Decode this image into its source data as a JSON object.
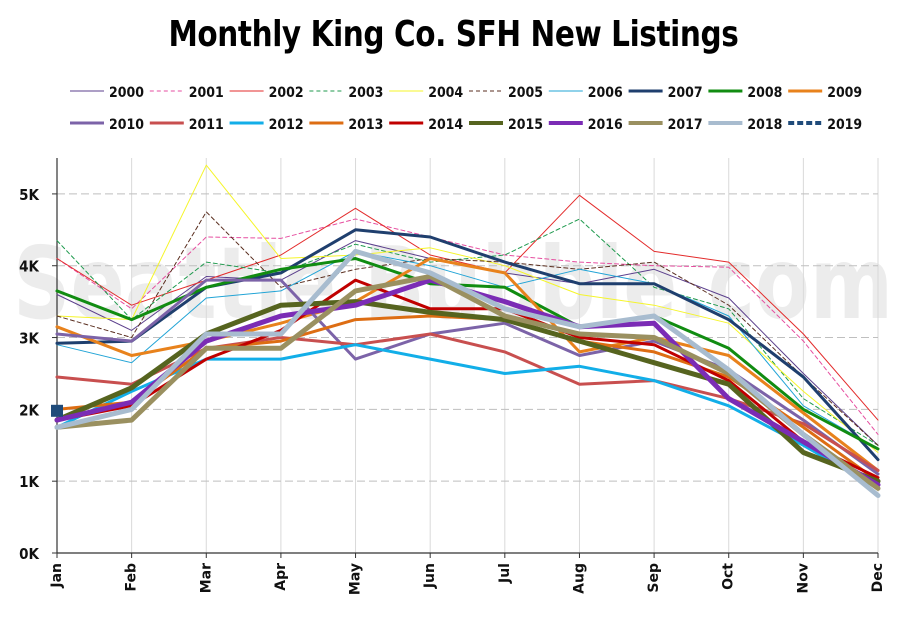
{
  "chart_data": {
    "type": "line",
    "title": "Monthly King Co. SFH New Listings",
    "categories": [
      "Jan",
      "Feb",
      "Mar",
      "Apr",
      "May",
      "Jun",
      "Jul",
      "Aug",
      "Sep",
      "Oct",
      "Nov",
      "Dec"
    ],
    "y_ticks": [
      {
        "value": 0,
        "label": "0K"
      },
      {
        "value": 1000,
        "label": "1K"
      },
      {
        "value": 2000,
        "label": "2K"
      },
      {
        "value": 3000,
        "label": "3K"
      },
      {
        "value": 4000,
        "label": "4K"
      },
      {
        "value": 5000,
        "label": "5K"
      }
    ],
    "ylim": [
      0,
      5500
    ],
    "grid": "horizontal dashed + vertical solid",
    "legend_placement": "top",
    "watermark": "Seattle Bubble.com",
    "series": [
      {
        "name": "2000",
        "color": "#5b3f8c",
        "width": 1,
        "dash": "",
        "values": [
          3600,
          3100,
          3850,
          3800,
          4350,
          4100,
          3900,
          3750,
          3950,
          3550,
          2500,
          1500
        ]
      },
      {
        "name": "2001",
        "color": "#e64ea0",
        "width": 1,
        "dash": "4,3",
        "values": [
          4100,
          3400,
          4400,
          4380,
          4650,
          4400,
          4150,
          4050,
          4000,
          3980,
          2950,
          1650
        ]
      },
      {
        "name": "2002",
        "color": "#e32b2b",
        "width": 1,
        "dash": "",
        "values": [
          4100,
          3450,
          3800,
          4150,
          4800,
          4150,
          3900,
          4980,
          4200,
          4050,
          3050,
          1850
        ]
      },
      {
        "name": "2003",
        "color": "#1f9a4e",
        "width": 1,
        "dash": "4,3",
        "values": [
          4350,
          3250,
          4050,
          3900,
          4300,
          4050,
          4150,
          4650,
          3700,
          3400,
          2150,
          1500
        ]
      },
      {
        "name": "2004",
        "color": "#f5f52a",
        "width": 1,
        "dash": "",
        "values": [
          3300,
          3250,
          5400,
          4100,
          4150,
          4250,
          4000,
          3600,
          3450,
          3200,
          2250,
          1400
        ]
      },
      {
        "name": "2005",
        "color": "#5a2e1f",
        "width": 1,
        "dash": "4,3",
        "values": [
          3300,
          3000,
          4750,
          3700,
          3950,
          4100,
          4050,
          3950,
          4050,
          3450,
          2450,
          1500
        ]
      },
      {
        "name": "2006",
        "color": "#22a4d6",
        "width": 1,
        "dash": "",
        "values": [
          2900,
          2650,
          3550,
          3650,
          4200,
          4000,
          3700,
          3950,
          3750,
          3300,
          2050,
          1450
        ]
      },
      {
        "name": "2007",
        "color": "#1f3f6e",
        "width": 3,
        "dash": "",
        "values": [
          2920,
          2950,
          3700,
          3900,
          4500,
          4400,
          4050,
          3750,
          3750,
          3250,
          2450,
          1300
        ]
      },
      {
        "name": "2008",
        "color": "#118c11",
        "width": 3,
        "dash": "",
        "values": [
          3650,
          3250,
          3700,
          3950,
          4100,
          3750,
          3700,
          3150,
          3300,
          2850,
          2000,
          1450
        ]
      },
      {
        "name": "2009",
        "color": "#e8821c",
        "width": 3,
        "dash": "",
        "values": [
          3150,
          2750,
          2950,
          3200,
          3500,
          4100,
          3900,
          2800,
          3000,
          2750,
          1950,
          1150
        ]
      },
      {
        "name": "2010",
        "color": "#7c63a8",
        "width": 3,
        "dash": "",
        "values": [
          3050,
          2950,
          3800,
          3800,
          2700,
          3050,
          3200,
          2750,
          2950,
          2550,
          1850,
          1100
        ]
      },
      {
        "name": "2011",
        "color": "#c84f4f",
        "width": 3,
        "dash": "",
        "values": [
          2450,
          2350,
          2850,
          3000,
          2900,
          3050,
          2800,
          2350,
          2400,
          2150,
          1800,
          1150
        ]
      },
      {
        "name": "2012",
        "color": "#12aee8",
        "width": 3,
        "dash": "",
        "values": [
          1750,
          2250,
          2700,
          2700,
          2900,
          2700,
          2500,
          2600,
          2400,
          2050,
          1500,
          900
        ]
      },
      {
        "name": "2013",
        "color": "#dd6d13",
        "width": 3,
        "dash": "",
        "values": [
          2000,
          2100,
          2850,
          2950,
          3250,
          3300,
          3250,
          2950,
          2800,
          2450,
          1750,
          1000
        ]
      },
      {
        "name": "2014",
        "color": "#c00000",
        "width": 3,
        "dash": "",
        "values": [
          1850,
          2050,
          2700,
          3100,
          3800,
          3400,
          3400,
          3000,
          2900,
          2400,
          1550,
          1050
        ]
      },
      {
        "name": "2015",
        "color": "#56641f",
        "width": 5,
        "dash": "",
        "values": [
          1850,
          2300,
          3050,
          3450,
          3500,
          3350,
          3250,
          2950,
          2650,
          2350,
          1400,
          1000
        ]
      },
      {
        "name": "2016",
        "color": "#7b2cb5",
        "width": 5,
        "dash": "",
        "values": [
          1850,
          2100,
          2950,
          3300,
          3450,
          3800,
          3500,
          3150,
          3200,
          2150,
          1550,
          950
        ]
      },
      {
        "name": "2017",
        "color": "#9a9060",
        "width": 5,
        "dash": "",
        "values": [
          1750,
          1850,
          2850,
          2850,
          3650,
          3850,
          3300,
          3050,
          3000,
          2500,
          1650,
          900
        ]
      },
      {
        "name": "2018",
        "color": "#a8bccf",
        "width": 5,
        "dash": "",
        "values": [
          1750,
          2000,
          3050,
          3050,
          4200,
          3900,
          3400,
          3150,
          3300,
          2550,
          1650,
          800
        ]
      },
      {
        "name": "2019",
        "color": "#1f4b7a",
        "width": 4,
        "dash": "6,3",
        "values": [
          1980,
          null,
          null,
          null,
          null,
          null,
          null,
          null,
          null,
          null,
          null,
          null
        ]
      }
    ]
  }
}
